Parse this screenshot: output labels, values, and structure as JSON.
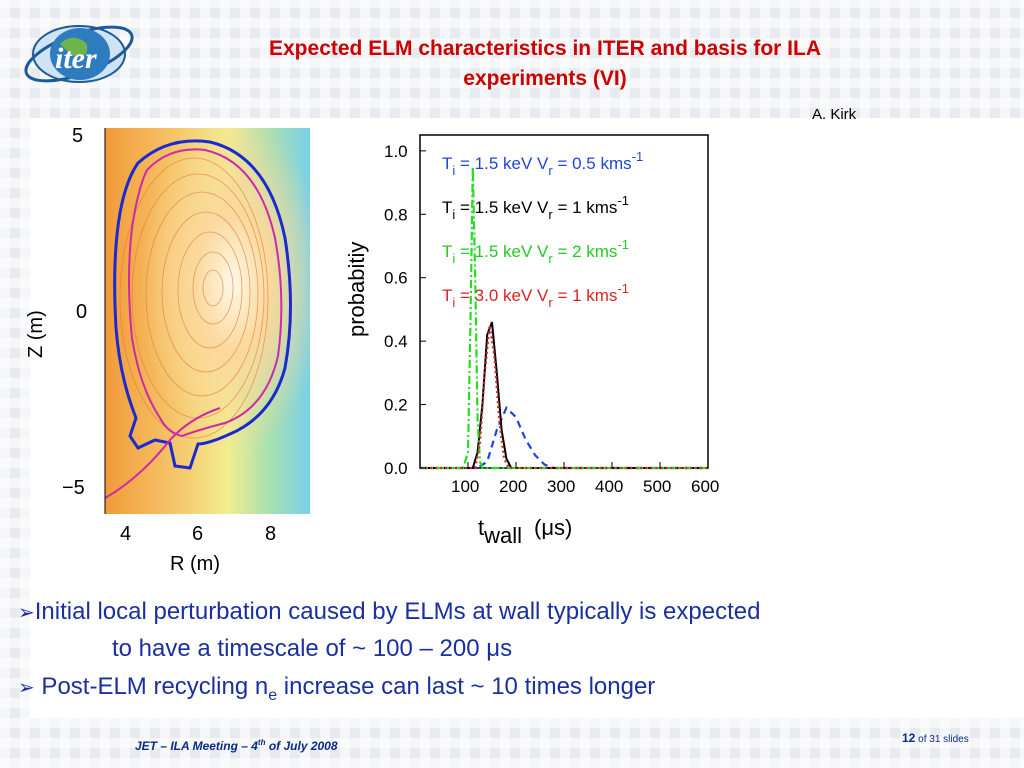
{
  "logo": {
    "text": "iter"
  },
  "title": {
    "line1": "Expected ELM characteristics in ITER and basis for ILA",
    "line2": "experiments (VI)"
  },
  "author": "A. Kirk",
  "equilibrium_plot": {
    "xlabel": "R (m)",
    "ylabel": "Z (m)",
    "xticks": [
      "4",
      "6",
      "8"
    ],
    "yticks": [
      "5",
      "0",
      "−5"
    ]
  },
  "chart_data": {
    "type": "line",
    "xlabel": "t",
    "xlabel_sub": "wall",
    "xlabel_unit": "(μs)",
    "ylabel": "probabitiy",
    "xlim": [
      0,
      600
    ],
    "ylim": [
      0.0,
      1.05
    ],
    "xticks": [
      "100",
      "200",
      "300",
      "400",
      "500",
      "600"
    ],
    "yticks": [
      "1.0",
      "0.8",
      "0.6",
      "0.4",
      "0.2",
      "0.0"
    ],
    "series": [
      {
        "name": "Ti = 1.5 keV  Vr = 0.5 kms-1",
        "color": "#2244dd",
        "style": "dashed",
        "x": [
          0,
          120,
          140,
          160,
          180,
          200,
          220,
          240,
          260,
          280,
          600
        ],
        "y": [
          0,
          0,
          0.02,
          0.12,
          0.19,
          0.16,
          0.09,
          0.04,
          0.01,
          0,
          0
        ]
      },
      {
        "name": "Ti = 1.5 keV  Vr = 1  kms-1",
        "color": "#000000",
        "style": "solid",
        "x": [
          0,
          110,
          120,
          130,
          140,
          150,
          160,
          170,
          180,
          190,
          600
        ],
        "y": [
          0,
          0,
          0.05,
          0.2,
          0.42,
          0.46,
          0.3,
          0.12,
          0.03,
          0,
          0
        ]
      },
      {
        "name": "Ti = 1.5 keV  Vr = 2  kms-1",
        "color": "#22dd22",
        "style": "dashdot",
        "x": [
          0,
          90,
          100,
          105,
          110,
          115,
          120,
          125,
          130,
          600
        ],
        "y": [
          0,
          0,
          0.05,
          0.45,
          0.95,
          0.6,
          0.15,
          0.02,
          0,
          0
        ]
      },
      {
        "name": "Ti = 3.0 keV  Vr = 1 kms-1",
        "color": "#dd2222",
        "style": "dotted",
        "x": [
          0,
          115,
          125,
          135,
          145,
          155,
          165,
          175,
          185,
          600
        ],
        "y": [
          0,
          0,
          0.08,
          0.3,
          0.45,
          0.35,
          0.15,
          0.03,
          0,
          0
        ]
      }
    ],
    "legend": [
      {
        "T": "T",
        "Tsub": "i",
        "tv": " = 1.5 keV",
        "V": "V",
        "Vsub": "r",
        "vv": " = 0.5 kms",
        "sup": "-1",
        "color": "#2244dd"
      },
      {
        "T": "T",
        "Tsub": "i",
        "tv": " = 1.5 keV",
        "V": "V",
        "Vsub": "r",
        "vv": " = 1  kms",
        "sup": "-1",
        "color": "#000000"
      },
      {
        "T": "T",
        "Tsub": "i",
        "tv": " = 1.5 keV",
        "V": "V",
        "Vsub": "r",
        "vv": " = 2  kms",
        "sup": "-1",
        "color": "#22cc22"
      },
      {
        "T": "T",
        "Tsub": "i",
        "tv": " = 3.0 keV",
        "V": "V",
        "Vsub": "r",
        "vv": " = 1 kms",
        "sup": "-1",
        "color": "#dd2222"
      }
    ]
  },
  "bullets": {
    "b1_line1": "Initial local perturbation caused by ELMs at wall typically is expected",
    "b1_line2": "to have a timescale of ~ 100 – 200 μs",
    "b2_pre": " Post-ELM recycling n",
    "b2_sub": "e",
    "b2_post": " increase can last ~ 10 times longer",
    "arrow": "➢"
  },
  "footer": {
    "pre": "JET – ILA Meeting – 4",
    "sup": "th",
    "post": " of July 2008"
  },
  "page": {
    "num": "12",
    "of": " of 31  slides"
  }
}
